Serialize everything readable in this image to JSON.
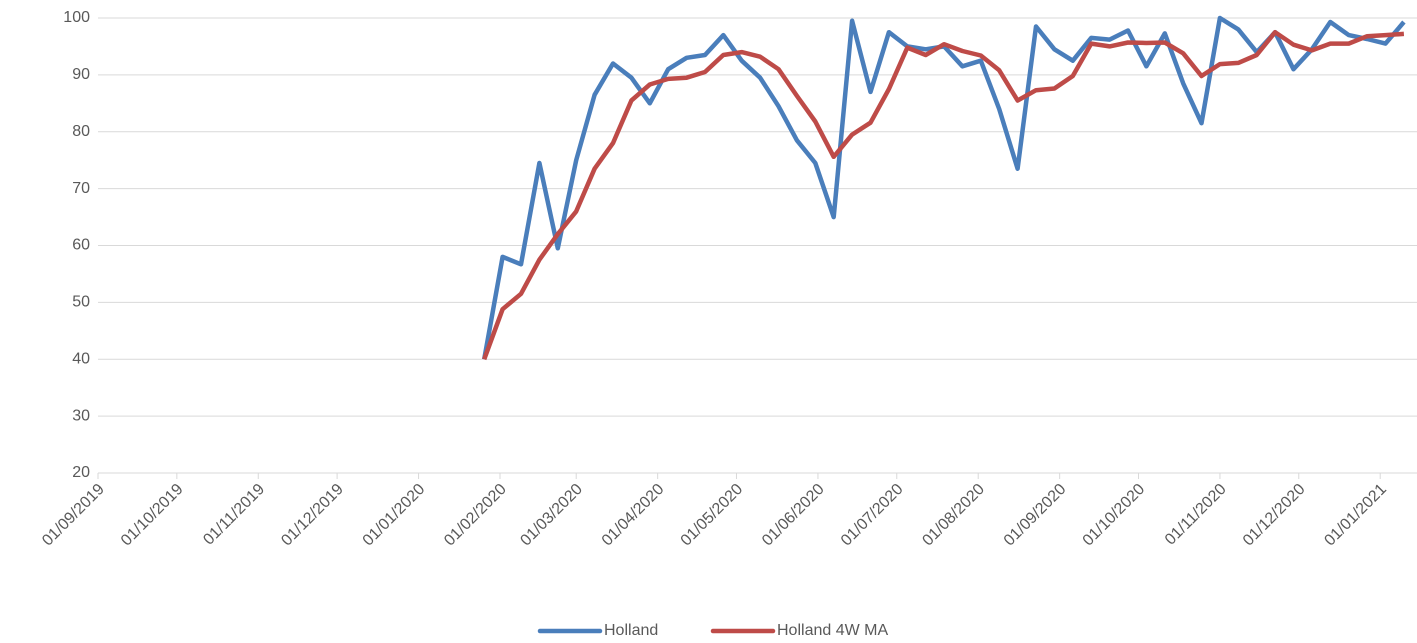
{
  "chart_data": {
    "type": "line",
    "x": [
      "26/01/2020",
      "02/02/2020",
      "09/02/2020",
      "16/02/2020",
      "23/02/2020",
      "01/03/2020",
      "08/03/2020",
      "15/03/2020",
      "22/03/2020",
      "29/03/2020",
      "05/04/2020",
      "12/04/2020",
      "19/04/2020",
      "26/04/2020",
      "03/05/2020",
      "10/05/2020",
      "17/05/2020",
      "24/05/2020",
      "31/05/2020",
      "07/06/2020",
      "14/06/2020",
      "21/06/2020",
      "28/06/2020",
      "05/07/2020",
      "12/07/2020",
      "19/07/2020",
      "26/07/2020",
      "02/08/2020",
      "09/08/2020",
      "16/08/2020",
      "23/08/2020",
      "30/08/2020",
      "06/09/2020",
      "13/09/2020",
      "20/09/2020",
      "27/09/2020",
      "04/10/2020",
      "11/10/2020",
      "18/10/2020",
      "25/10/2020",
      "01/11/2020",
      "08/11/2020",
      "15/11/2020",
      "22/11/2020",
      "29/11/2020",
      "06/12/2020",
      "13/12/2020",
      "20/12/2020",
      "27/12/2020",
      "03/01/2021",
      "10/01/2021"
    ],
    "series": [
      {
        "name": "Holland",
        "color": "#4a7ebb",
        "values": [
          40,
          58,
          56.7,
          74.5,
          59.5,
          75,
          86.5,
          92,
          89.5,
          85,
          91,
          93,
          93.5,
          97,
          92.5,
          89.5,
          84.5,
          78.5,
          74.5,
          65,
          99.5,
          87,
          97.5,
          95,
          94.5,
          95,
          91.5,
          92.5,
          84,
          73.5,
          98.5,
          94.5,
          92.5,
          96.5,
          96.2,
          97.8,
          91.5,
          97.3,
          88.5,
          81.5,
          100,
          98,
          94,
          97.5,
          91,
          94.5,
          99.3,
          97,
          96.3,
          95.5,
          99.3
        ]
      },
      {
        "name": "Holland 4W MA",
        "color": "#be4b48",
        "values": [
          40,
          48.8,
          51.5,
          57.5,
          62,
          66,
          73.5,
          78,
          85.5,
          88.3,
          89.3,
          89.5,
          90.5,
          93.5,
          94,
          93.2,
          91,
          86.3,
          81.8,
          75.6,
          79.5,
          81.6,
          87.5,
          94.8,
          93.5,
          95.4,
          94.2,
          93.4,
          90.8,
          85.5,
          87.3,
          87.6,
          89.8,
          95.5,
          95,
          95.7,
          95.6,
          95.7,
          93.8,
          89.8,
          91.9,
          92.1,
          93.5,
          97.5,
          95.3,
          94.3,
          95.5,
          95.5,
          96.8,
          97,
          97.2
        ]
      }
    ],
    "xlim": [
      "01/09/2019",
      "15/01/2021"
    ],
    "xticks": [
      "01/09/2019",
      "01/10/2019",
      "01/11/2019",
      "01/12/2019",
      "01/01/2020",
      "01/02/2020",
      "01/03/2020",
      "01/04/2020",
      "01/05/2020",
      "01/06/2020",
      "01/07/2020",
      "01/08/2020",
      "01/09/2020",
      "01/10/2020",
      "01/11/2020",
      "01/12/2020",
      "01/01/2021"
    ],
    "ylim": [
      20,
      100
    ],
    "yticks": [
      20,
      30,
      40,
      50,
      60,
      70,
      80,
      90,
      100
    ],
    "grid": true,
    "legend": "bottom"
  }
}
